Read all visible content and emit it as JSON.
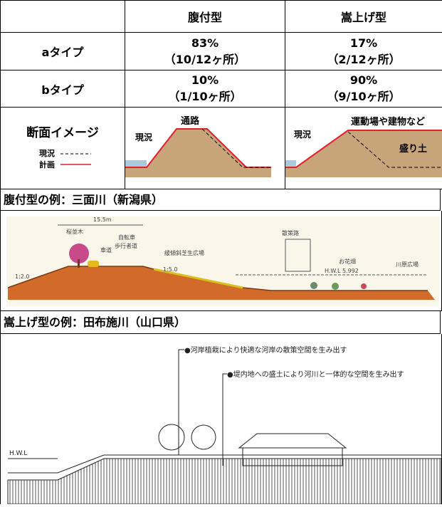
{
  "table": {
    "headers": [
      "腹付型",
      "嵩上げ型"
    ],
    "rows": [
      {
        "label": "aタイプ",
        "cells": [
          [
            "83%",
            "（10/12ヶ所）"
          ],
          [
            "17%",
            "（2/12ヶ所）"
          ]
        ]
      },
      {
        "label": "bタイプ",
        "cells": [
          [
            "10%",
            "（1/10ヶ所）"
          ],
          [
            "90%",
            "（9/10ヶ所）"
          ]
        ]
      }
    ],
    "image_row": {
      "label": "断面イメージ",
      "legend": [
        "現況",
        "計画"
      ],
      "haraduke": {
        "labels": [
          "現況",
          "通路"
        ]
      },
      "kasaage": {
        "labels": [
          "現況",
          "運動場や建物など",
          "盛り土"
        ]
      }
    }
  },
  "examples": [
    {
      "title": "腹付型の例：三面川（新潟県）",
      "labels": [
        "15.5m",
        "桜並木",
        "車道",
        "自転車",
        "歩行者道",
        "緩傾斜芝生広場",
        "散策路",
        "お花畑",
        "H.W.L 5.992",
        "川原広場",
        "1:2.0",
        "1:5.0"
      ]
    },
    {
      "title": "嵩上げ型の例：田布施川（山口県）",
      "labels": [
        "●河岸植栽により快適な河岸の散策空間を生み出す",
        "●堤内地への盛土により河川と一体的な空間を生み出す",
        "H.W.L"
      ]
    }
  ]
}
